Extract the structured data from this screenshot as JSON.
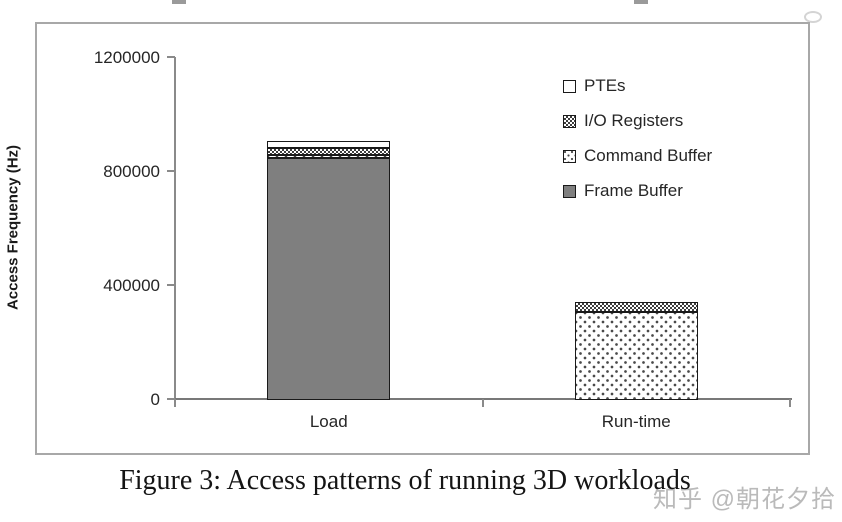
{
  "figure": {
    "caption": "Figure 3: Access patterns of running 3D workloads",
    "watermark": "知乎 @朝花夕拾"
  },
  "chart_data": {
    "type": "bar",
    "stacked": true,
    "title": "",
    "xlabel": "",
    "ylabel": "Access Frequency (Hz)",
    "ylim": [
      0,
      1200000
    ],
    "yticks": [
      0,
      400000,
      800000,
      1200000
    ],
    "grid": false,
    "legend_position": "upper-right",
    "categories": [
      "Load",
      "Run-time"
    ],
    "series": [
      {
        "name": "Frame Buffer",
        "pattern": "solid-gray",
        "values": [
          850000,
          0
        ]
      },
      {
        "name": "Command Buffer",
        "pattern": "dotted",
        "values": [
          8000,
          310000
        ]
      },
      {
        "name": "I/O Registers",
        "pattern": "checkered",
        "values": [
          25000,
          35000
        ]
      },
      {
        "name": "PTEs",
        "pattern": "white",
        "values": [
          25000,
          0
        ]
      }
    ],
    "legend": [
      {
        "label": "PTEs",
        "pattern": "white"
      },
      {
        "label": "I/O Registers",
        "pattern": "checkered"
      },
      {
        "label": "Command Buffer",
        "pattern": "dotted"
      },
      {
        "label": "Frame Buffer",
        "pattern": "solid-gray"
      }
    ],
    "colors": {
      "frame_buffer_gray": "#7f7f7f",
      "axis_line": "#8a8a8a",
      "chart_border": "#a8a8a8",
      "bar_outline": "#1a1a1a",
      "text": "#262626",
      "watermark": "#bababa"
    }
  }
}
